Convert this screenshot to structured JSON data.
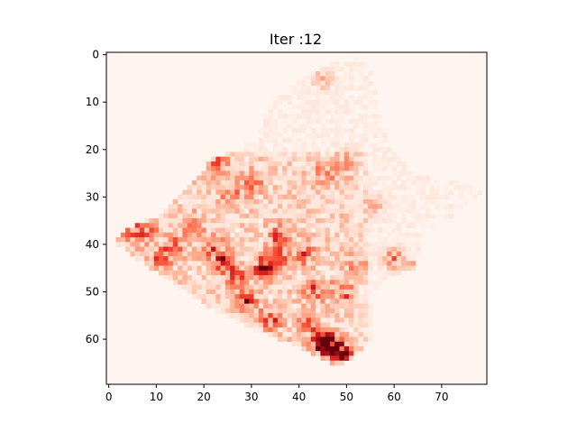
{
  "chart_data": {
    "type": "heatmap",
    "title": "Iter :12",
    "xlabel": "",
    "ylabel": "",
    "xlim": [
      -0.5,
      79.5
    ],
    "ylim": [
      69.5,
      -0.5
    ],
    "x_ticks": [
      0,
      10,
      20,
      30,
      40,
      50,
      60,
      70
    ],
    "y_ticks": [
      0,
      10,
      20,
      30,
      40,
      50,
      60
    ],
    "colormap": "Reds",
    "color_low": "#fff5f0",
    "color_high": "#67000d",
    "background": "#fff5f0",
    "grid": false,
    "legend": "none",
    "region_outline": [
      [
        52,
        1
      ],
      [
        55,
        2
      ],
      [
        57,
        10
      ],
      [
        58,
        14
      ],
      [
        60,
        20
      ],
      [
        65,
        26
      ],
      [
        72,
        27
      ],
      [
        79,
        29
      ],
      [
        77,
        33
      ],
      [
        70,
        36
      ],
      [
        66,
        40
      ],
      [
        65,
        46
      ],
      [
        60,
        47
      ],
      [
        56,
        50
      ],
      [
        56,
        61
      ],
      [
        52,
        65
      ],
      [
        48,
        66
      ],
      [
        40,
        62
      ],
      [
        30,
        58
      ],
      [
        22,
        54
      ],
      [
        10,
        46
      ],
      [
        3,
        41
      ],
      [
        1,
        40
      ],
      [
        5,
        37
      ],
      [
        12,
        34
      ],
      [
        15,
        30
      ],
      [
        20,
        26
      ],
      [
        22,
        22
      ],
      [
        28,
        21
      ],
      [
        32,
        17
      ],
      [
        34,
        12
      ],
      [
        38,
        8
      ],
      [
        42,
        5
      ],
      [
        48,
        2
      ]
    ],
    "hotspots": [
      {
        "col": 5,
        "row": 38,
        "value": 0.45
      },
      {
        "col": 8,
        "row": 37,
        "value": 0.4
      },
      {
        "col": 11,
        "row": 43,
        "value": 0.5
      },
      {
        "col": 14,
        "row": 40,
        "value": 0.45
      },
      {
        "col": 18,
        "row": 36,
        "value": 0.4
      },
      {
        "col": 22,
        "row": 41,
        "value": 0.55
      },
      {
        "col": 24,
        "row": 44,
        "value": 0.6
      },
      {
        "col": 27,
        "row": 47,
        "value": 0.6
      },
      {
        "col": 29,
        "row": 52,
        "value": 0.75
      },
      {
        "col": 33,
        "row": 45,
        "value": 0.85
      },
      {
        "col": 36,
        "row": 42,
        "value": 0.5
      },
      {
        "col": 26,
        "row": 30,
        "value": 0.5
      },
      {
        "col": 23,
        "row": 23,
        "value": 0.55
      },
      {
        "col": 30,
        "row": 27,
        "value": 0.45
      },
      {
        "col": 36,
        "row": 38,
        "value": 0.5
      },
      {
        "col": 41,
        "row": 42,
        "value": 0.45
      },
      {
        "col": 43,
        "row": 50,
        "value": 0.5
      },
      {
        "col": 49,
        "row": 50,
        "value": 0.55
      },
      {
        "col": 34,
        "row": 56,
        "value": 0.55
      },
      {
        "col": 42,
        "row": 57,
        "value": 0.5
      },
      {
        "col": 45,
        "row": 61,
        "value": 0.9
      },
      {
        "col": 47,
        "row": 61,
        "value": 0.8
      },
      {
        "col": 49,
        "row": 63,
        "value": 0.7
      },
      {
        "col": 46,
        "row": 25,
        "value": 0.45
      },
      {
        "col": 60,
        "row": 43,
        "value": 0.5
      },
      {
        "col": 52,
        "row": 44,
        "value": 0.35
      },
      {
        "col": 65,
        "row": 45,
        "value": 0.35
      },
      {
        "col": 45,
        "row": 5,
        "value": 0.25
      },
      {
        "col": 50,
        "row": 22,
        "value": 0.25
      },
      {
        "col": 56,
        "row": 32,
        "value": 0.3
      }
    ]
  }
}
